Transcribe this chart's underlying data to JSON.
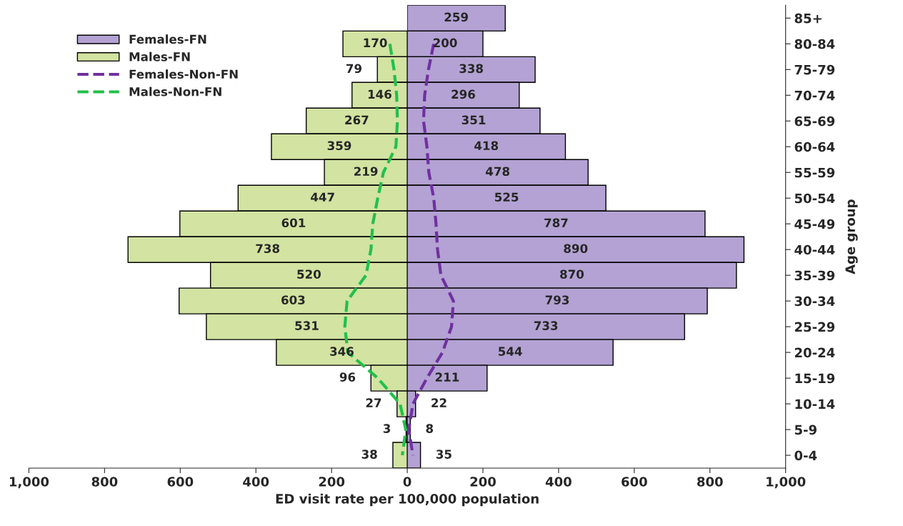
{
  "chart_data": [
    {
      "type": "bar",
      "orientation": "horizontal",
      "categories": [
        null,
        null,
        null,
        null,
        null,
        null,
        null,
        null,
        null,
        null,
        null,
        null,
        null,
        null,
        null,
        null,
        null,
        null
      ],
      "xlim": [
        1000,
        0
      ],
      "xticks": [
        {
          "value": 1000,
          "label": "1,000"
        },
        800,
        600,
        400,
        200
      ],
      "tick_labels": "x",
      "series": [
        {
          "name": "Males-FN",
          "color": "#d2e3a2",
          "values": [
            null,
            170,
            79,
            146,
            267,
            359,
            219,
            447,
            601,
            738,
            520,
            603,
            531,
            346,
            96,
            27,
            3,
            38
          ],
          "value_labels": [
            null,
            "170",
            "79",
            "146",
            "267",
            "359",
            "219",
            "447",
            "601",
            "738",
            "520",
            "603",
            "531",
            "346",
            "96",
            "27",
            "3",
            "38"
          ]
        },
        {
          "name": "Males-Non-FN",
          "type": "line",
          "line_style": "dashed",
          "color": "#22c04a",
          "values": [
            null,
            46,
            35,
            28,
            26,
            30,
            63,
            78,
            91,
            96,
            109,
            159,
            165,
            157,
            78,
            19,
            4,
            13
          ]
        }
      ],
      "legend": "top left",
      "grid": false,
      "marker": "none"
    },
    {
      "type": "bar",
      "orientation": "horizontal",
      "categories": [
        "85+",
        "80-84",
        "75-79",
        "70-74",
        "65-69",
        "60-64",
        "55-59",
        "50-54",
        "45-49",
        "40-44",
        "35-39",
        "30-34",
        "25-29",
        "20-24",
        "15-19",
        "10-14",
        "5-9",
        "0-4"
      ],
      "xlabel": "ED visit rate per 100,000 population",
      "ylabel": "Age group",
      "xlim": [
        0,
        1000
      ],
      "xticks": [
        0,
        200,
        400,
        600,
        800,
        {
          "value": 1000,
          "label": "1,000"
        }
      ],
      "series": [
        {
          "name": "Females-FN",
          "color": "#b3a2d3",
          "values": [
            259,
            200,
            338,
            296,
            351,
            418,
            478,
            525,
            787,
            890,
            870,
            793,
            733,
            544,
            211,
            22,
            8,
            35
          ],
          "value_labels": [
            "259",
            "200",
            "338",
            "296",
            "351",
            "418",
            "478",
            "525",
            "787",
            "890",
            "870",
            "793",
            "733",
            "544",
            "211",
            "22",
            "8",
            "35"
          ]
        },
        {
          "name": "Females-Non-FN",
          "type": "line",
          "line_style": "dashed",
          "color": "#7030a0",
          "values": [
            null,
            70,
            56,
            46,
            43,
            52,
            57,
            70,
            76,
            80,
            89,
            122,
            117,
            93,
            52,
            15,
            4,
            15
          ]
        }
      ],
      "legend": "top left",
      "grid": false,
      "marker": "none"
    }
  ]
}
